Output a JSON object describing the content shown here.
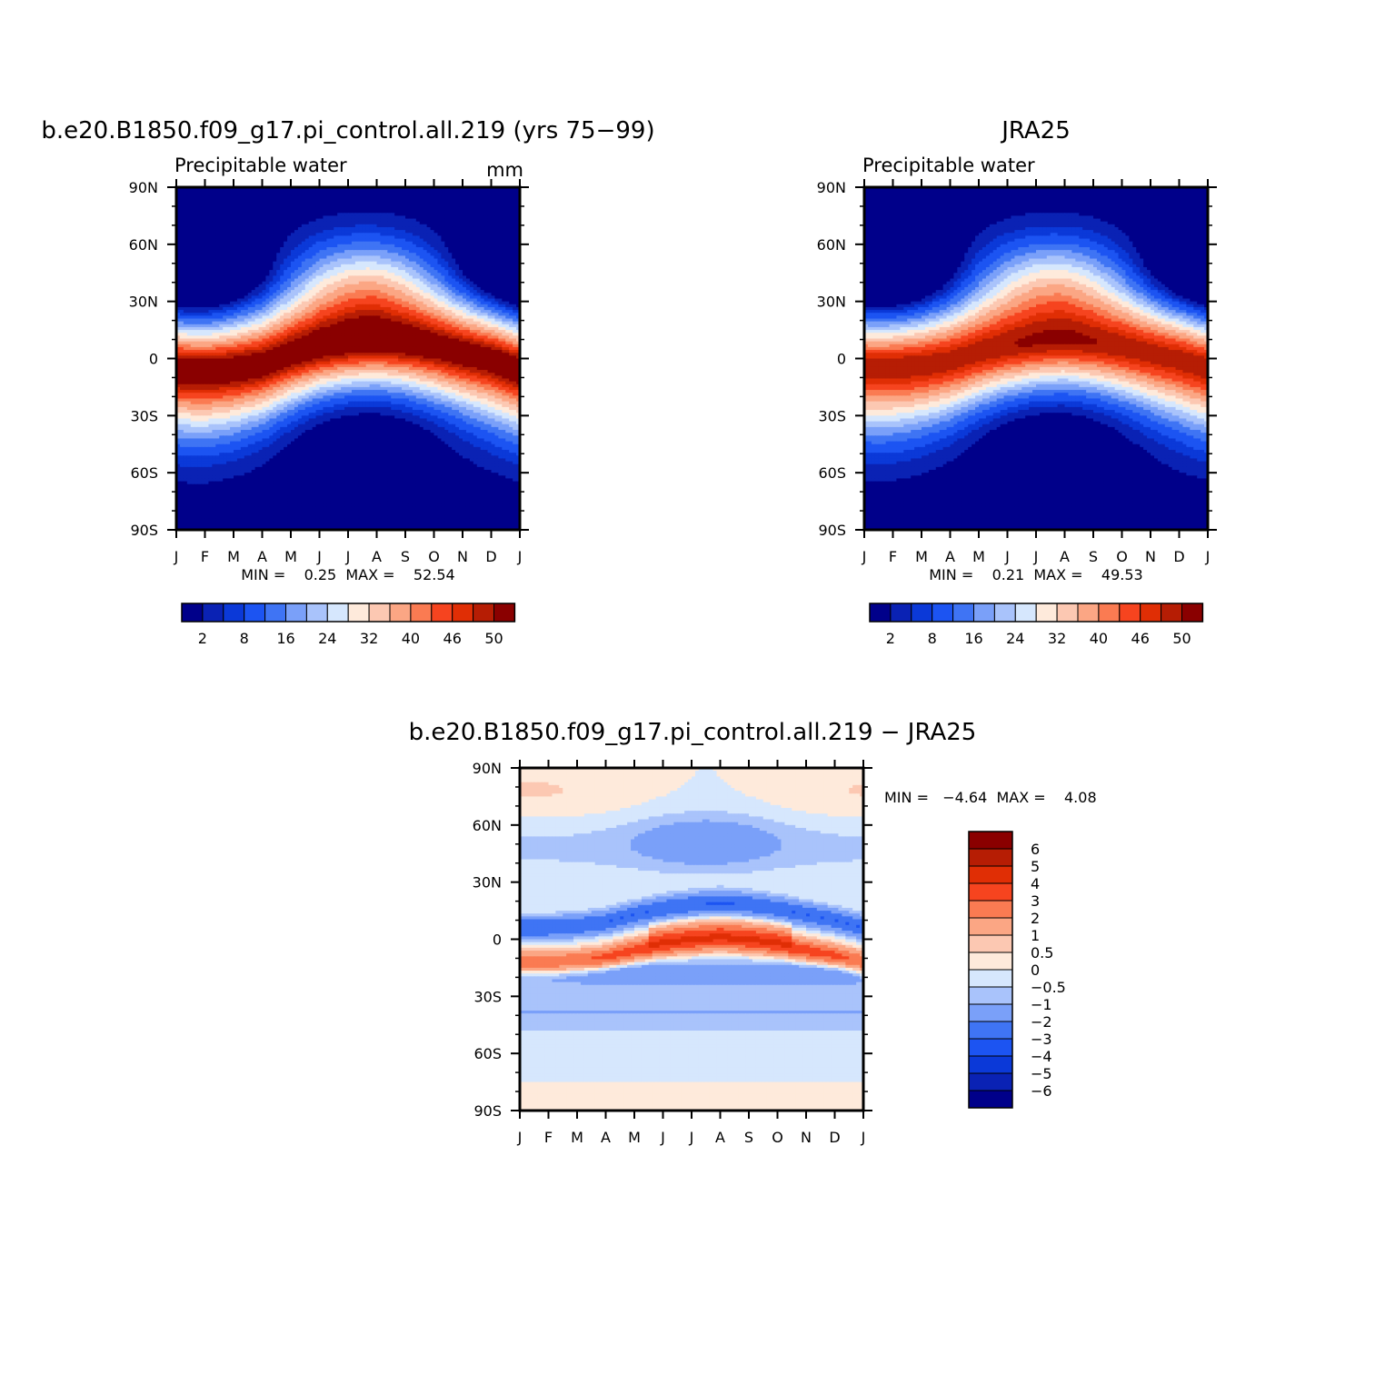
{
  "chart_data": [
    {
      "type": "heatmap",
      "title": "b.e20.B1850.f09_g17.pi_control.all.219 (yrs 75−99)",
      "variable_label": "Precipitable water",
      "units_label": "mm",
      "x_tick_labels": [
        "J",
        "F",
        "M",
        "A",
        "M",
        "J",
        "J",
        "A",
        "S",
        "O",
        "N",
        "D",
        "J"
      ],
      "y_tick_labels": [
        "90N",
        "60N",
        "30N",
        "0",
        "30S",
        "60S",
        "90S"
      ],
      "x": [
        "Jan",
        "Feb",
        "Mar",
        "Apr",
        "May",
        "Jun",
        "Jul",
        "Aug",
        "Sep",
        "Oct",
        "Nov",
        "Dec",
        "Jan"
      ],
      "y": [
        90,
        60,
        30,
        0,
        -30,
        -60,
        -90
      ],
      "stats_text": "MIN =    0.25  MAX =    52.54",
      "min": 0.25,
      "max": 52.54,
      "colorbar_labels": [
        "2",
        "8",
        "16",
        "24",
        "32",
        "40",
        "46",
        "50"
      ],
      "colorbar_levels": [
        2,
        5,
        8,
        12,
        16,
        20,
        24,
        28,
        32,
        36,
        40,
        43,
        46,
        48,
        50
      ],
      "itcz_peak_latitude_by_month": [
        -5,
        -6,
        -5,
        -3,
        2,
        6,
        8,
        9,
        8,
        6,
        3,
        0,
        -5
      ]
    },
    {
      "type": "heatmap",
      "title": "JRA25",
      "variable_label": "Precipitable water",
      "x_tick_labels": [
        "J",
        "F",
        "M",
        "A",
        "M",
        "J",
        "J",
        "A",
        "S",
        "O",
        "N",
        "D",
        "J"
      ],
      "y_tick_labels": [
        "90N",
        "60N",
        "30N",
        "0",
        "30S",
        "60S",
        "90S"
      ],
      "x": [
        "Jan",
        "Feb",
        "Mar",
        "Apr",
        "May",
        "Jun",
        "Jul",
        "Aug",
        "Sep",
        "Oct",
        "Nov",
        "Dec",
        "Jan"
      ],
      "y": [
        90,
        60,
        30,
        0,
        -30,
        -60,
        -90
      ],
      "stats_text": "MIN =    0.21  MAX =    49.53",
      "min": 0.21,
      "max": 49.53,
      "colorbar_labels": [
        "2",
        "8",
        "16",
        "24",
        "32",
        "40",
        "46",
        "50"
      ],
      "colorbar_levels": [
        2,
        5,
        8,
        12,
        16,
        20,
        24,
        28,
        32,
        36,
        40,
        43,
        46,
        48,
        50
      ],
      "itcz_peak_latitude_by_month": [
        -4,
        -4,
        -3,
        -1,
        3,
        6,
        8,
        9,
        8,
        6,
        3,
        0,
        -4
      ]
    },
    {
      "type": "heatmap",
      "title": "b.e20.B1850.f09_g17.pi_control.all.219 − JRA25",
      "x_tick_labels": [
        "J",
        "F",
        "M",
        "A",
        "M",
        "J",
        "J",
        "A",
        "S",
        "O",
        "N",
        "D",
        "J"
      ],
      "y_tick_labels": [
        "90N",
        "60N",
        "30N",
        "0",
        "30S",
        "60S",
        "90S"
      ],
      "x": [
        "Jan",
        "Feb",
        "Mar",
        "Apr",
        "May",
        "Jun",
        "Jul",
        "Aug",
        "Sep",
        "Oct",
        "Nov",
        "Dec",
        "Jan"
      ],
      "y": [
        90,
        60,
        30,
        0,
        -30,
        -60,
        -90
      ],
      "stats_text": "MIN =   −4.64  MAX =    4.08",
      "min": -4.64,
      "max": 4.08,
      "colorbar_labels": [
        "6",
        "5",
        "4",
        "3",
        "2",
        "1",
        "0.5",
        "0",
        "−0.5",
        "−1",
        "−2",
        "−3",
        "−4",
        "−5",
        "−6"
      ],
      "colorbar_levels": [
        -6,
        -5,
        -4,
        -3,
        -2,
        -1,
        -0.5,
        0,
        0.5,
        1,
        2,
        3,
        4,
        5,
        6
      ]
    }
  ],
  "colors": {
    "mean_palette": [
      "#00008a",
      "#0a22b4",
      "#0b39d8",
      "#1c54f2",
      "#3f74f4",
      "#7aa0f9",
      "#a9c3fb",
      "#d6e7fd",
      "#feeadb",
      "#fcc8b2",
      "#fba684",
      "#fa7b52",
      "#f6441f",
      "#e02e05",
      "#b61d04",
      "#8a0000"
    ],
    "diff_palette": [
      "#00008a",
      "#0a22b4",
      "#0b39d8",
      "#1c54f2",
      "#3f74f4",
      "#7aa0f9",
      "#a9c3fb",
      "#d6e7fd",
      "#feeadb",
      "#fcc8b2",
      "#fba684",
      "#fa7b52",
      "#f6441f",
      "#e02e05",
      "#b61d04",
      "#8a0000"
    ]
  }
}
